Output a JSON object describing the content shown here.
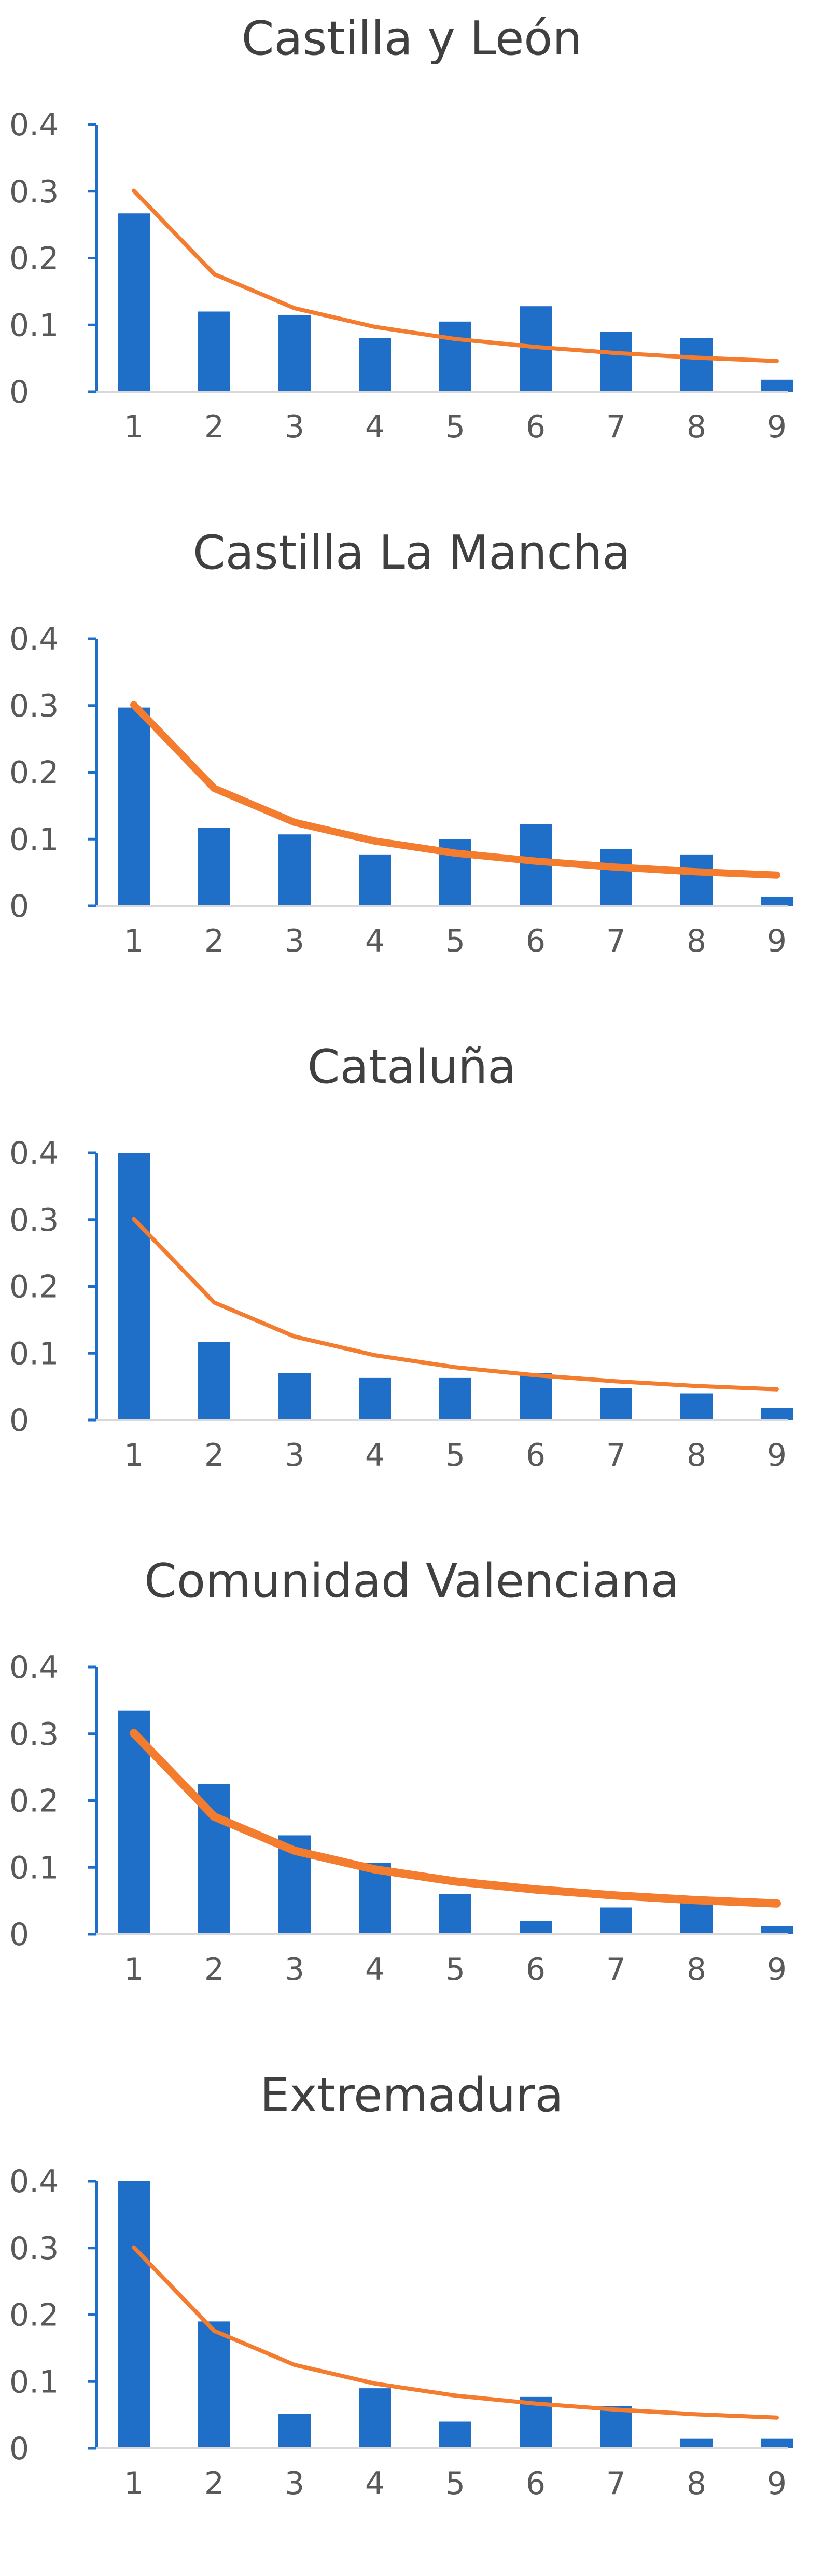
{
  "colors": {
    "bars": "#1f6fc8",
    "line": "#f47c2f",
    "axis": "#1f6fc8",
    "text": "#404040",
    "ticks": "#595959"
  },
  "chart_data": [
    {
      "type": "bar",
      "title": "Castilla y León",
      "categories": [
        "1",
        "2",
        "3",
        "4",
        "5",
        "6",
        "7",
        "8",
        "9"
      ],
      "series": [
        {
          "type": "bar",
          "values": [
            0.267,
            0.12,
            0.115,
            0.08,
            0.105,
            0.128,
            0.09,
            0.08,
            0.018
          ]
        },
        {
          "type": "line",
          "values": [
            0.301,
            0.176,
            0.125,
            0.097,
            0.079,
            0.067,
            0.058,
            0.051,
            0.046
          ]
        }
      ],
      "yticks": [
        "0",
        "0.1",
        "0.2",
        "0.3",
        "0.4"
      ],
      "ylim": [
        0,
        0.4
      ],
      "grid": false,
      "legend": "none"
    },
    {
      "type": "bar",
      "title": "Castilla La Mancha",
      "categories": [
        "1",
        "2",
        "3",
        "4",
        "5",
        "6",
        "7",
        "8",
        "9"
      ],
      "series": [
        {
          "type": "bar",
          "values": [
            0.297,
            0.117,
            0.107,
            0.077,
            0.1,
            0.122,
            0.085,
            0.077,
            0.014
          ]
        },
        {
          "type": "line",
          "values": [
            0.301,
            0.176,
            0.125,
            0.097,
            0.079,
            0.067,
            0.058,
            0.051,
            0.046
          ]
        }
      ],
      "yticks": [
        "0",
        "0.1",
        "0.2",
        "0.3",
        "0.4"
      ],
      "ylim": [
        0,
        0.4
      ],
      "grid": false,
      "legend": "none"
    },
    {
      "type": "bar",
      "title": "Cataluña",
      "categories": [
        "1",
        "2",
        "3",
        "4",
        "5",
        "6",
        "7",
        "8",
        "9"
      ],
      "series": [
        {
          "type": "bar",
          "values": [
            0.4,
            0.117,
            0.07,
            0.063,
            0.063,
            0.07,
            0.048,
            0.04,
            0.018
          ]
        },
        {
          "type": "line",
          "values": [
            0.301,
            0.176,
            0.125,
            0.097,
            0.079,
            0.067,
            0.058,
            0.051,
            0.046
          ]
        }
      ],
      "yticks": [
        "0",
        "0.1",
        "0.2",
        "0.3",
        "0.4"
      ],
      "ylim": [
        0,
        0.4
      ],
      "grid": false,
      "legend": "none"
    },
    {
      "type": "bar",
      "title": "Comunidad Valenciana",
      "categories": [
        "1",
        "2",
        "3",
        "4",
        "5",
        "6",
        "7",
        "8",
        "9"
      ],
      "series": [
        {
          "type": "bar",
          "values": [
            0.335,
            0.225,
            0.148,
            0.107,
            0.06,
            0.02,
            0.04,
            0.05,
            0.012
          ]
        },
        {
          "type": "line",
          "values": [
            0.301,
            0.176,
            0.125,
            0.097,
            0.079,
            0.067,
            0.058,
            0.051,
            0.046
          ]
        }
      ],
      "yticks": [
        "0",
        "0.1",
        "0.2",
        "0.3",
        "0.4"
      ],
      "ylim": [
        0,
        0.4
      ],
      "grid": false,
      "legend": "none"
    },
    {
      "type": "bar",
      "title": "Extremadura",
      "categories": [
        "1",
        "2",
        "3",
        "4",
        "5",
        "6",
        "7",
        "8",
        "9"
      ],
      "series": [
        {
          "type": "bar",
          "values": [
            0.4,
            0.19,
            0.052,
            0.09,
            0.04,
            0.077,
            0.063,
            0.015,
            0.015
          ]
        },
        {
          "type": "line",
          "values": [
            0.301,
            0.176,
            0.125,
            0.097,
            0.079,
            0.067,
            0.058,
            0.051,
            0.046
          ]
        }
      ],
      "yticks": [
        "0",
        "0.1",
        "0.2",
        "0.3",
        "0.4"
      ],
      "ylim": [
        0,
        0.4
      ],
      "grid": false,
      "legend": "none"
    }
  ]
}
